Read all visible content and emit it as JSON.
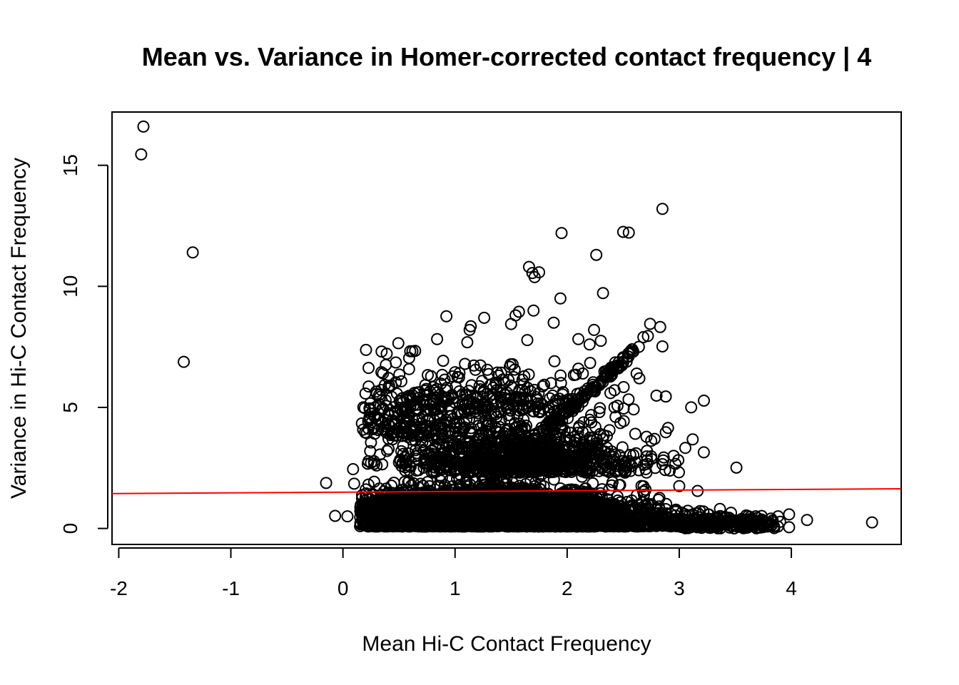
{
  "chart_data": {
    "type": "scatter",
    "title": "Mean vs. Variance in Homer-corrected contact frequency | 4",
    "xlabel": "Mean Hi-C Contact Frequency",
    "ylabel": "Variance in Hi-C Contact Frequency",
    "xlim": [
      -2.06,
      4.98
    ],
    "ylim": [
      -0.66,
      17.2
    ],
    "x_ticks": [
      -2,
      -1,
      0,
      1,
      2,
      3,
      4
    ],
    "x_tick_labels": [
      "-2",
      "-1",
      "0",
      "1",
      "2",
      "3",
      "4"
    ],
    "y_ticks": [
      0,
      5,
      10,
      15
    ],
    "y_tick_labels": [
      "0",
      "5",
      "10",
      "15"
    ],
    "grid": false,
    "marker": "open-circle",
    "marker_color": "#000000",
    "fit_line": {
      "color": "#ff0000",
      "x": [
        -2.06,
        4.98
      ],
      "y": [
        1.44,
        1.64
      ]
    },
    "points": [
      {
        "x": -1.78,
        "y": 16.6
      },
      {
        "x": -1.8,
        "y": 15.45
      },
      {
        "x": -1.34,
        "y": 11.4
      },
      {
        "x": -1.42,
        "y": 6.88
      },
      {
        "x": -0.15,
        "y": 1.88
      },
      {
        "x": 0.09,
        "y": 2.45
      },
      {
        "x": 0.1,
        "y": 1.85
      },
      {
        "x": -0.07,
        "y": 0.52
      },
      {
        "x": 0.04,
        "y": 0.5
      },
      {
        "x": 2.85,
        "y": 13.2
      },
      {
        "x": 1.95,
        "y": 12.2
      },
      {
        "x": 2.5,
        "y": 12.25
      },
      {
        "x": 2.55,
        "y": 12.22
      },
      {
        "x": 2.26,
        "y": 11.3
      },
      {
        "x": 1.66,
        "y": 10.8
      },
      {
        "x": 1.69,
        "y": 10.55
      },
      {
        "x": 1.71,
        "y": 10.38
      },
      {
        "x": 1.75,
        "y": 10.58
      },
      {
        "x": 2.32,
        "y": 9.72
      },
      {
        "x": 1.94,
        "y": 9.5
      },
      {
        "x": 1.54,
        "y": 8.8
      },
      {
        "x": 1.57,
        "y": 8.95
      },
      {
        "x": 1.7,
        "y": 9.0
      },
      {
        "x": 1.88,
        "y": 8.5
      },
      {
        "x": 1.26,
        "y": 8.7
      },
      {
        "x": 1.14,
        "y": 8.35
      },
      {
        "x": 1.13,
        "y": 8.2
      },
      {
        "x": 2.74,
        "y": 8.45
      },
      {
        "x": 2.83,
        "y": 8.32
      },
      {
        "x": 2.85,
        "y": 7.52
      },
      {
        "x": 2.24,
        "y": 8.2
      },
      {
        "x": 0.84,
        "y": 7.82
      },
      {
        "x": 0.6,
        "y": 7.32
      },
      {
        "x": 0.62,
        "y": 7.32
      },
      {
        "x": 2.1,
        "y": 7.82
      },
      {
        "x": 2.2,
        "y": 7.6
      },
      {
        "x": 2.3,
        "y": 7.75
      },
      {
        "x": 2.58,
        "y": 7.4
      },
      {
        "x": 2.64,
        "y": 7.5
      },
      {
        "x": 2.68,
        "y": 7.9
      },
      {
        "x": 2.72,
        "y": 7.95
      },
      {
        "x": 2.1,
        "y": 6.6
      },
      {
        "x": 2.14,
        "y": 6.4
      },
      {
        "x": 2.62,
        "y": 6.4
      },
      {
        "x": 2.88,
        "y": 5.45
      },
      {
        "x": 3.22,
        "y": 5.28
      },
      {
        "x": 2.9,
        "y": 4.15
      },
      {
        "x": 3.12,
        "y": 3.68
      },
      {
        "x": 2.95,
        "y": 3.0
      },
      {
        "x": 2.75,
        "y": 2.98
      },
      {
        "x": 2.75,
        "y": 3.62
      },
      {
        "x": 2.78,
        "y": 3.7
      },
      {
        "x": 3.0,
        "y": 1.75
      },
      {
        "x": 2.7,
        "y": 1.6
      },
      {
        "x": 0.18,
        "y": 4.08
      },
      {
        "x": 0.27,
        "y": 4.1
      },
      {
        "x": 0.34,
        "y": 5.72
      },
      {
        "x": 0.25,
        "y": 3.55
      },
      {
        "x": 0.35,
        "y": 2.65
      },
      {
        "x": 0.3,
        "y": 2.6
      },
      {
        "x": 0.23,
        "y": 1.0
      },
      {
        "x": 0.46,
        "y": 1.15
      },
      {
        "x": 3.98,
        "y": 0.58
      },
      {
        "x": 4.14,
        "y": 0.35
      },
      {
        "x": 4.72,
        "y": 0.25
      },
      {
        "x": 3.98,
        "y": 0.05
      },
      {
        "x": 3.88,
        "y": 0.08
      }
    ],
    "clusters": [
      {
        "cx": 1.25,
        "cy": 0.6,
        "sx": 0.6,
        "sy": 0.55,
        "n": 2600
      },
      {
        "cx": 1.55,
        "cy": 2.3,
        "sx": 0.55,
        "sy": 1.25,
        "n": 1000
      },
      {
        "cx": 1.45,
        "cy": 0.08,
        "sx": 0.85,
        "sy": 0.1,
        "n": 1100
      },
      {
        "cx": 2.9,
        "cy": 0.25,
        "sx": 0.45,
        "sy": 0.25,
        "n": 220
      },
      {
        "cx": 0.55,
        "cy": 0.25,
        "sx": 0.25,
        "sy": 0.25,
        "n": 250
      },
      {
        "cx": 1.15,
        "cy": 4.8,
        "sx": 0.55,
        "sy": 1.2,
        "n": 280
      },
      {
        "cx": 0.6,
        "cy": 3.8,
        "sx": 0.25,
        "sy": 1.2,
        "n": 160
      }
    ],
    "diagonal_band": {
      "x0": 1.3,
      "x1": 2.6,
      "y0": 2.0,
      "y1": 7.3,
      "n": 180
    },
    "tail": {
      "x0": 3.0,
      "x1": 3.85,
      "y0": 0.0,
      "y1": 0.25,
      "n": 120
    }
  }
}
